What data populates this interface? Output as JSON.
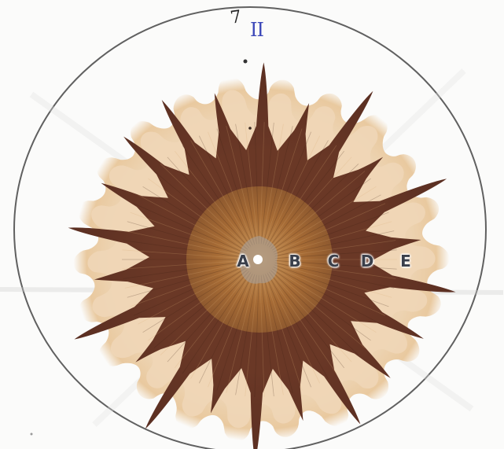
{
  "image": {
    "description_free": true,
    "colors": {
      "paper": "#fbfbfa",
      "outer_halo": "#ecd1ae",
      "light_band": "#f0d9bc",
      "dark_band": "#6b3a27",
      "center_disc": "#a76d38",
      "circle_outline": "#3d3d3d"
    }
  },
  "handwriting": {
    "number": "7",
    "roman": "II"
  },
  "zone_labels": [
    {
      "key": "a",
      "text": "A"
    },
    {
      "key": "b",
      "text": "B"
    },
    {
      "key": "c",
      "text": "C"
    },
    {
      "key": "d",
      "text": "D"
    },
    {
      "key": "e",
      "text": "E"
    }
  ]
}
